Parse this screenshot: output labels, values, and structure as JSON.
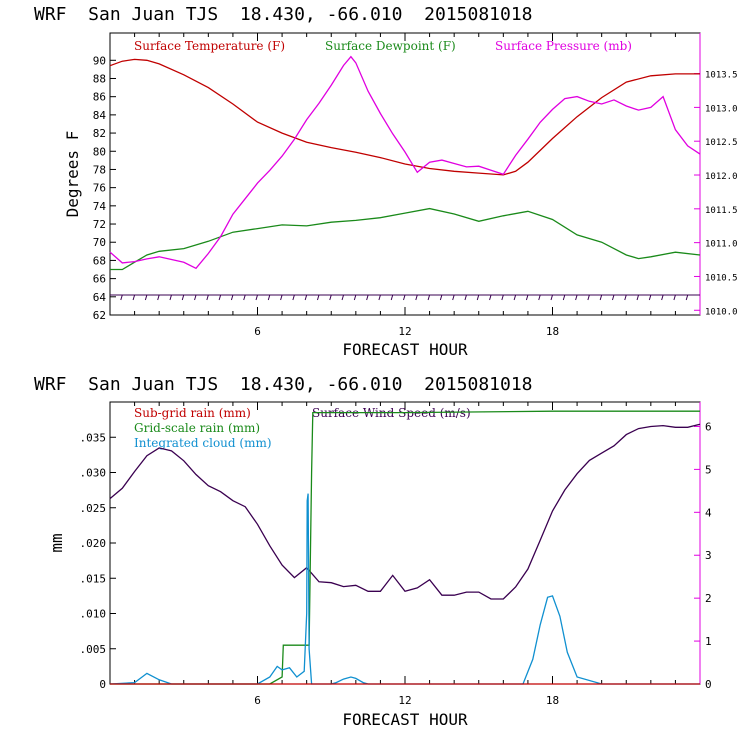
{
  "charts": {
    "top": {
      "title": "WRF  San Juan TJS  18.430, -66.010  2015081018",
      "xlabel": "FORECAST HOUR",
      "ylabel": "Degrees F",
      "legend": {
        "temp": "Surface Temperature (F)",
        "dew": "Surface Dewpoint (F)",
        "pres": "Surface Pressure (mb)"
      }
    },
    "bottom": {
      "title": "WRF  San Juan TJS  18.430, -66.010  2015081018",
      "xlabel": "FORECAST HOUR",
      "ylabel": "mm",
      "legend": {
        "subgrid": "Sub-grid rain (mm)",
        "wind": "Surface Wind Speed (m/s)",
        "gridscale": "Grid-scale rain (mm)",
        "cloud": "Integrated cloud (mm)"
      }
    }
  },
  "colors": {
    "temperature": "#c00000",
    "dewpoint": "#1a8a1a",
    "pressure": "#e000e0",
    "wind": "#3a0050",
    "subgrid": "#c00000",
    "gridscale": "#1a8a1a",
    "cloud": "#1090d0",
    "barbs": "#3a0050"
  },
  "chart_data": [
    {
      "type": "line",
      "xlabel": "FORECAST HOUR",
      "ylabel": "Degrees F",
      "xlim": [
        0,
        24
      ],
      "ylim": [
        62,
        93
      ],
      "y2lim": [
        1009.93,
        1014.1
      ],
      "xticks": [
        "6",
        "12",
        "18"
      ],
      "xtick_values": [
        6,
        12,
        18
      ],
      "yticks": [
        "62",
        "64",
        "66",
        "68",
        "70",
        "72",
        "74",
        "76",
        "78",
        "80",
        "82",
        "84",
        "86",
        "88",
        "90"
      ],
      "ytick_values": [
        62,
        64,
        66,
        68,
        70,
        72,
        74,
        76,
        78,
        80,
        82,
        84,
        86,
        88,
        90
      ],
      "y2ticks": [
        "1010.0",
        "1010.5",
        "1011.0",
        "1011.5",
        "1012.0",
        "1012.5",
        "1013.0",
        "1013.5"
      ],
      "y2tick_values": [
        1010.0,
        1010.5,
        1011.0,
        1011.5,
        1012.0,
        1012.5,
        1013.0,
        1013.5
      ],
      "series": [
        {
          "name": "Surface Temperature (F)",
          "axis": "left",
          "x": [
            0,
            0.5,
            1,
            1.5,
            2,
            3,
            4,
            5,
            6,
            7,
            8,
            9,
            10,
            11,
            12,
            13,
            14,
            15,
            16,
            16.5,
            17,
            18,
            19,
            20,
            21,
            22,
            23,
            24
          ],
          "y": [
            89.4,
            89.9,
            90.1,
            90.0,
            89.6,
            88.4,
            87.0,
            85.2,
            83.2,
            82.0,
            81.0,
            80.4,
            79.9,
            79.3,
            78.6,
            78.1,
            77.8,
            77.6,
            77.4,
            77.8,
            78.8,
            81.4,
            83.8,
            85.9,
            87.6,
            88.3,
            88.5,
            88.5
          ]
        },
        {
          "name": "Surface Dewpoint (F)",
          "axis": "left",
          "x": [
            0,
            0.5,
            1,
            1.5,
            2,
            3,
            4,
            5,
            6,
            7,
            8,
            9,
            10,
            11,
            12,
            13,
            14,
            15,
            16,
            17,
            18,
            19,
            20,
            21,
            21.5,
            22,
            23,
            24
          ],
          "y": [
            67.0,
            67.0,
            67.8,
            68.6,
            69.0,
            69.3,
            70.1,
            71.1,
            71.5,
            71.9,
            71.8,
            72.2,
            72.4,
            72.7,
            73.2,
            73.7,
            73.1,
            72.3,
            72.9,
            73.4,
            72.5,
            70.8,
            70.0,
            68.6,
            68.2,
            68.4,
            68.9,
            68.6
          ]
        },
        {
          "name": "Surface Pressure (mb)",
          "axis": "right",
          "x": [
            0,
            0.5,
            1,
            1.5,
            2,
            2.5,
            3,
            3.5,
            4,
            4.5,
            5,
            5.5,
            6,
            6.5,
            7,
            7.5,
            8,
            8.5,
            9,
            9.5,
            9.8,
            10,
            10.5,
            11,
            11.5,
            12,
            12.5,
            13,
            13.5,
            14,
            14.5,
            15,
            15.5,
            16,
            16.5,
            17,
            17.5,
            18,
            18.5,
            19,
            19.5,
            20,
            20.5,
            21,
            21.5,
            22,
            22.5,
            23,
            23.5,
            24
          ],
          "y": [
            1010.86,
            1010.7,
            1010.72,
            1010.76,
            1010.79,
            1010.75,
            1010.71,
            1010.62,
            1010.84,
            1011.09,
            1011.42,
            1011.65,
            1011.88,
            1012.07,
            1012.28,
            1012.53,
            1012.82,
            1013.06,
            1013.33,
            1013.62,
            1013.75,
            1013.66,
            1013.24,
            1012.91,
            1012.61,
            1012.34,
            1012.04,
            1012.19,
            1012.22,
            1012.17,
            1012.12,
            1012.13,
            1012.07,
            1012.01,
            1012.29,
            1012.53,
            1012.78,
            1012.97,
            1013.13,
            1013.16,
            1013.09,
            1013.05,
            1013.11,
            1013.02,
            1012.96,
            1013.0,
            1013.16,
            1012.67,
            1012.43,
            1012.31
          ]
        }
      ]
    },
    {
      "type": "line",
      "xlabel": "FORECAST HOUR",
      "ylabel": "mm",
      "xlim": [
        0,
        24
      ],
      "ylim": [
        0,
        0.04
      ],
      "y2lim": [
        0,
        6.57
      ],
      "xticks": [
        "6",
        "12",
        "18"
      ],
      "xtick_values": [
        6,
        12,
        18
      ],
      "yticks": [
        "0",
        ".005",
        ".010",
        ".015",
        ".020",
        ".025",
        ".030",
        ".035"
      ],
      "ytick_values": [
        0,
        0.005,
        0.01,
        0.015,
        0.02,
        0.025,
        0.03,
        0.035
      ],
      "y2ticks": [
        "0",
        "1",
        "2",
        "3",
        "4",
        "5",
        "6"
      ],
      "y2tick_values": [
        0,
        1,
        2,
        3,
        4,
        5,
        6
      ],
      "series": [
        {
          "name": "Surface Wind Speed (m/s)",
          "axis": "right",
          "x": [
            0,
            0.5,
            1,
            1.5,
            2,
            2.5,
            3,
            3.5,
            4,
            4.5,
            5,
            5.5,
            6,
            6.5,
            7,
            7.5,
            8,
            8.5,
            9,
            9.5,
            10,
            10.5,
            11,
            11.5,
            12,
            12.5,
            13,
            13.5,
            14,
            14.5,
            15,
            15.5,
            16,
            16.5,
            17,
            17.5,
            18,
            18.5,
            19,
            19.5,
            20,
            20.5,
            21,
            21.5,
            22,
            22.5,
            23,
            23.5,
            24
          ],
          "y": [
            4.32,
            4.56,
            4.95,
            5.32,
            5.5,
            5.43,
            5.2,
            4.88,
            4.62,
            4.48,
            4.27,
            4.13,
            3.72,
            3.22,
            2.77,
            2.48,
            2.71,
            2.38,
            2.36,
            2.27,
            2.3,
            2.16,
            2.16,
            2.53,
            2.16,
            2.24,
            2.43,
            2.07,
            2.07,
            2.14,
            2.14,
            1.98,
            1.98,
            2.26,
            2.68,
            3.35,
            4.03,
            4.52,
            4.9,
            5.21,
            5.38,
            5.55,
            5.81,
            5.95,
            6.0,
            6.02,
            5.98,
            5.98,
            6.05
          ]
        },
        {
          "name": "Grid-scale rain (mm)",
          "axis": "left",
          "x": [
            0,
            6.5,
            7.0,
            7.05,
            8.1,
            8.2,
            8.25,
            12,
            18,
            24
          ],
          "y": [
            0,
            0,
            0.001,
            0.0055,
            0.0055,
            0.03,
            0.0385,
            0.0385,
            0.0387,
            0.0387
          ]
        },
        {
          "name": "Integrated cloud (mm)",
          "axis": "left",
          "x": [
            0,
            1,
            1.5,
            2,
            2.5,
            3,
            5,
            6,
            6.5,
            6.8,
            7.0,
            7.3,
            7.6,
            7.9,
            8.0,
            8.02,
            8.06,
            8.1,
            8.2,
            8.4,
            9,
            9.2,
            9.5,
            9.8,
            10,
            10.3,
            10.5,
            16,
            16.8,
            17.2,
            17.5,
            17.8,
            18,
            18.3,
            18.6,
            19,
            20,
            24
          ],
          "y": [
            0,
            0.0002,
            0.0015,
            0.0006,
            0,
            0,
            0,
            0,
            0.001,
            0.0025,
            0.002,
            0.0023,
            0.001,
            0.0018,
            0.01,
            0.026,
            0.027,
            0.005,
            0,
            0,
            0,
            0.0002,
            0.0007,
            0.001,
            0.0008,
            0.0002,
            0,
            0,
            0,
            0.0035,
            0.0084,
            0.0123,
            0.0125,
            0.0096,
            0.0045,
            0.001,
            0,
            0
          ]
        },
        {
          "name": "Sub-grid rain (mm)",
          "axis": "left",
          "x": [
            0,
            24
          ],
          "y": [
            0,
            0
          ]
        }
      ]
    }
  ]
}
